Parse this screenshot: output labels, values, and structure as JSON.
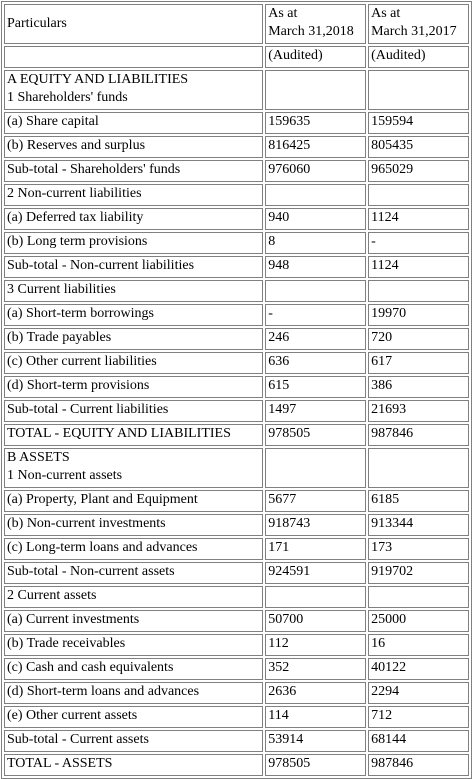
{
  "header": {
    "particulars": "Particulars",
    "col1_line1": "As at",
    "col1_line2": "March 31,2018",
    "col2_line1": "As at",
    "col2_line2": "March 31,2017",
    "col1_status": "(Audited)",
    "col2_status": "(Audited)"
  },
  "rows": [
    {
      "type": "section",
      "line1": "A EQUITY AND LIABILITIES",
      "line2": "1 Shareholders' funds"
    },
    {
      "type": "item",
      "label": "(a) Share capital",
      "v2018": "159635",
      "v2017": "159594"
    },
    {
      "type": "item",
      "label": "(b) Reserves and surplus",
      "v2018": "816425",
      "v2017": "805435"
    },
    {
      "type": "item",
      "label": "Sub-total - Shareholders' funds",
      "v2018": "976060",
      "v2017": "965029"
    },
    {
      "type": "heading",
      "label": "2 Non-current liabilities",
      "v2018": "",
      "v2017": ""
    },
    {
      "type": "item",
      "label": "(a) Deferred tax liability",
      "v2018": "940",
      "v2017": "1124"
    },
    {
      "type": "item",
      "label": "(b) Long term provisions",
      "v2018": "8",
      "v2017": "-"
    },
    {
      "type": "item",
      "label": "Sub-total - Non-current liabilities",
      "v2018": "948",
      "v2017": "1124"
    },
    {
      "type": "heading",
      "label": "3 Current liabilities",
      "v2018": "",
      "v2017": ""
    },
    {
      "type": "item",
      "label": "(a) Short-term borrowings",
      "v2018": "-",
      "v2017": "19970"
    },
    {
      "type": "item",
      "label": "(b) Trade payables",
      "v2018": "246",
      "v2017": "720"
    },
    {
      "type": "item",
      "label": "(c) Other current liabilities",
      "v2018": "636",
      "v2017": "617"
    },
    {
      "type": "item",
      "label": "(d) Short-term provisions",
      "v2018": "615",
      "v2017": "386"
    },
    {
      "type": "item",
      "label": "Sub-total - Current liabilities",
      "v2018": "1497",
      "v2017": "21693"
    },
    {
      "type": "item",
      "label": "TOTAL - EQUITY AND LIABILITIES",
      "v2018": "978505",
      "v2017": "987846"
    },
    {
      "type": "section",
      "line1": "B ASSETS",
      "line2": "1 Non-current assets"
    },
    {
      "type": "item",
      "label": "(a) Property, Plant and Equipment",
      "v2018": "5677",
      "v2017": "6185"
    },
    {
      "type": "item",
      "label": "(b) Non-current investments",
      "v2018": "918743",
      "v2017": "913344"
    },
    {
      "type": "item",
      "label": "(c) Long-term loans and advances",
      "v2018": "171",
      "v2017": "173"
    },
    {
      "type": "item",
      "label": "Sub-total - Non-current assets",
      "v2018": "924591",
      "v2017": "919702"
    },
    {
      "type": "heading",
      "label": "2 Current assets",
      "v2018": "",
      "v2017": ""
    },
    {
      "type": "item",
      "label": "(a) Current investments",
      "v2018": "50700",
      "v2017": "25000"
    },
    {
      "type": "item",
      "label": "(b) Trade receivables",
      "v2018": "112",
      "v2017": "16"
    },
    {
      "type": "item",
      "label": "(c) Cash and cash equivalents",
      "v2018": "352",
      "v2017": "40122"
    },
    {
      "type": "item",
      "label": "(d) Short-term loans and advances",
      "v2018": "2636",
      "v2017": "2294"
    },
    {
      "type": "item",
      "label": "(e) Other current assets",
      "v2018": "114",
      "v2017": "712"
    },
    {
      "type": "item",
      "label": "Sub-total - Current assets",
      "v2018": "53914",
      "v2017": "68144"
    },
    {
      "type": "item",
      "label": "TOTAL - ASSETS",
      "v2018": "978505",
      "v2017": "987846"
    }
  ]
}
